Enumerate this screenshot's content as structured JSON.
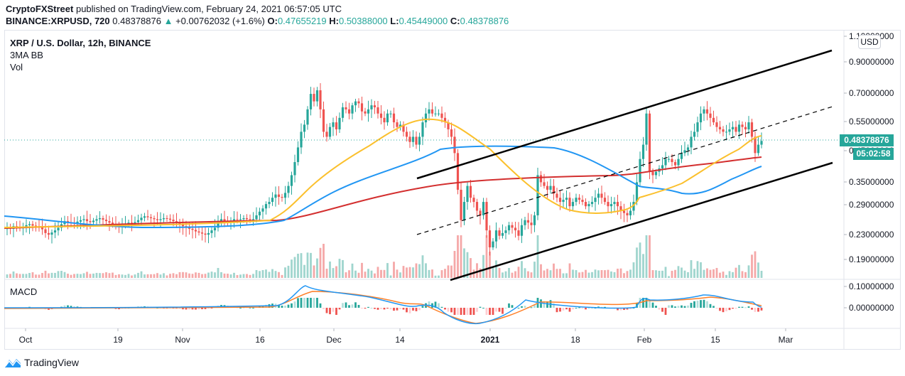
{
  "header": {
    "publisher": "CryptoFXStreet",
    "published_text": " published on TradingView.com, February 24, 2021 06:57:05 UTC",
    "symbol": "BINANCE:XRPUSD, 720",
    "last": "0.48378876",
    "change_icon": "triangle-up-icon",
    "change": "+0.00762032 (+1.6%)",
    "o_label": "O:",
    "o": "0.47655219",
    "h_label": "H:",
    "h": "0.50388000",
    "l_label": "L:",
    "l": "0.45449000",
    "c_label": "C:",
    "c": "0.48378876"
  },
  "legend": {
    "title": "XRP / U.S. Dollar, 12h, BINANCE",
    "indicator": "3MA BB",
    "volume": "Vol"
  },
  "macd_pane": {
    "label": "MACD"
  },
  "price_axis": {
    "currency": "USD",
    "last_price_tag": "0.48378876",
    "countdown_tag": "05:02:58"
  },
  "footer": {
    "brand": "TradingView",
    "logo_icon": "tradingview-logo-icon"
  },
  "colors": {
    "up": "#26a69a",
    "down": "#ef5350",
    "ma_fast": "#fbc02d",
    "ma_mid": "#2196f3",
    "ma_slow": "#d32f2f",
    "channel": "#000000",
    "macd": "#2196f3",
    "signal": "#ff7f27"
  },
  "chart_data": {
    "type": "candlestick",
    "title": "XRP / U.S. Dollar, 12h, BINANCE",
    "scale": "log",
    "y_ticks": [
      "1.10000000",
      "0.90000000",
      "0.70000000",
      "0.55000000",
      "0.45000000",
      "0.35000000",
      "0.29000000",
      "0.23000000",
      "0.19000000"
    ],
    "x_ticks": [
      "Oct",
      "19",
      "Nov",
      "16",
      "Dec",
      "14",
      "2021",
      "18",
      "Feb",
      "15",
      "Mar"
    ],
    "macd_ticks": [
      "0.10000000",
      "0.00000000"
    ],
    "last_close": 0.48378876,
    "ohlc_last": {
      "open": 0.47655219,
      "high": 0.50388,
      "low": 0.45449,
      "close": 0.48378876
    },
    "close_series": [
      0.245,
      0.243,
      0.248,
      0.246,
      0.244,
      0.247,
      0.25,
      0.252,
      0.249,
      0.248,
      0.246,
      0.242,
      0.235,
      0.232,
      0.236,
      0.24,
      0.245,
      0.252,
      0.258,
      0.256,
      0.255,
      0.254,
      0.257,
      0.26,
      0.262,
      0.258,
      0.256,
      0.259,
      0.262,
      0.264,
      0.261,
      0.258,
      0.255,
      0.252,
      0.25,
      0.249,
      0.251,
      0.253,
      0.255,
      0.254,
      0.256,
      0.26,
      0.265,
      0.268,
      0.266,
      0.264,
      0.262,
      0.26,
      0.262,
      0.264,
      0.263,
      0.261,
      0.258,
      0.256,
      0.252,
      0.248,
      0.245,
      0.243,
      0.241,
      0.238,
      0.236,
      0.234,
      0.232,
      0.235,
      0.24,
      0.245,
      0.256,
      0.262,
      0.258,
      0.256,
      0.258,
      0.262,
      0.261,
      0.262,
      0.264,
      0.262,
      0.26,
      0.262,
      0.27,
      0.278,
      0.285,
      0.295,
      0.3,
      0.31,
      0.318,
      0.312,
      0.31,
      0.322,
      0.34,
      0.37,
      0.41,
      0.46,
      0.52,
      0.55,
      0.62,
      0.7,
      0.66,
      0.72,
      0.62,
      0.52,
      0.5,
      0.54,
      0.56,
      0.53,
      0.58,
      0.63,
      0.62,
      0.6,
      0.64,
      0.66,
      0.65,
      0.61,
      0.6,
      0.62,
      0.64,
      0.63,
      0.6,
      0.58,
      0.56,
      0.6,
      0.6,
      0.56,
      0.54,
      0.55,
      0.52,
      0.5,
      0.48,
      0.5,
      0.47,
      0.5,
      0.56,
      0.6,
      0.62,
      0.6,
      0.6,
      0.6,
      0.58,
      0.56,
      0.53,
      0.5,
      0.44,
      0.33,
      0.26,
      0.3,
      0.34,
      0.31,
      0.3,
      0.28,
      0.27,
      0.3,
      0.24,
      0.21,
      0.22,
      0.24,
      0.23,
      0.235,
      0.24,
      0.25,
      0.245,
      0.24,
      0.23,
      0.25,
      0.26,
      0.255,
      0.25,
      0.27,
      0.37,
      0.35,
      0.34,
      0.33,
      0.34,
      0.32,
      0.31,
      0.3,
      0.305,
      0.31,
      0.29,
      0.3,
      0.31,
      0.305,
      0.3,
      0.29,
      0.295,
      0.3,
      0.31,
      0.32,
      0.31,
      0.3,
      0.29,
      0.295,
      0.3,
      0.29,
      0.28,
      0.275,
      0.27,
      0.28,
      0.3,
      0.35,
      0.42,
      0.47,
      0.6,
      0.38,
      0.37,
      0.38,
      0.39,
      0.4,
      0.42,
      0.42,
      0.41,
      0.4,
      0.42,
      0.44,
      0.45,
      0.46,
      0.5,
      0.52,
      0.56,
      0.6,
      0.62,
      0.6,
      0.58,
      0.56,
      0.54,
      0.53,
      0.52,
      0.52,
      0.53,
      0.54,
      0.52,
      0.55,
      0.54,
      0.53,
      0.56,
      0.5,
      0.44,
      0.47,
      0.484
    ]
  }
}
